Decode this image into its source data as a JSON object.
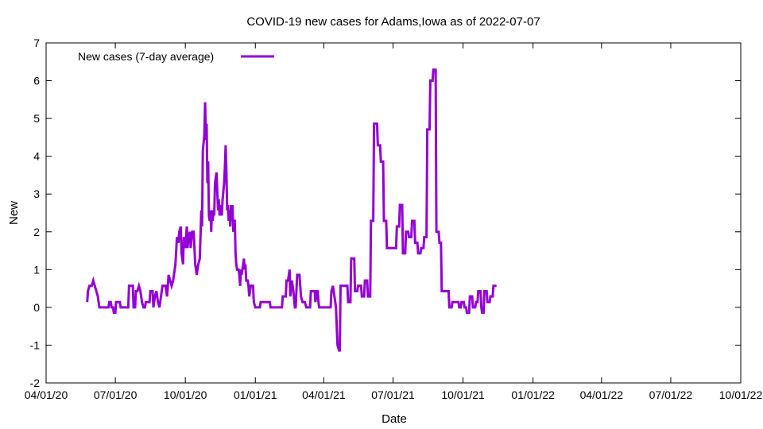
{
  "chart_data": {
    "type": "line",
    "title": "COVID-19 new cases for Adams,Iowa as of 2022-07-07",
    "xlabel": "Date",
    "ylabel": "New",
    "x_scale": "date",
    "xlim": [
      "2020-04-01",
      "2022-10-01"
    ],
    "ylim": [
      -2,
      7
    ],
    "x_ticks": [
      {
        "value": "2020-04-01",
        "label": "04/01/20"
      },
      {
        "value": "2020-07-01",
        "label": "07/01/20"
      },
      {
        "value": "2020-10-01",
        "label": "10/01/20"
      },
      {
        "value": "2021-01-01",
        "label": "01/01/21"
      },
      {
        "value": "2021-04-01",
        "label": "04/01/21"
      },
      {
        "value": "2021-07-01",
        "label": "07/01/21"
      },
      {
        "value": "2021-10-01",
        "label": "10/01/21"
      },
      {
        "value": "2022-01-01",
        "label": "01/01/22"
      },
      {
        "value": "2022-04-01",
        "label": "04/01/22"
      },
      {
        "value": "2022-07-01",
        "label": "07/01/22"
      },
      {
        "value": "2022-10-01",
        "label": "10/01/22"
      }
    ],
    "y_ticks": [
      {
        "value": -2,
        "label": "-2"
      },
      {
        "value": -1,
        "label": "-1"
      },
      {
        "value": 0,
        "label": "0"
      },
      {
        "value": 1,
        "label": "1"
      },
      {
        "value": 2,
        "label": "2"
      },
      {
        "value": 3,
        "label": "3"
      },
      {
        "value": 4,
        "label": "4"
      },
      {
        "value": 5,
        "label": "5"
      },
      {
        "value": 6,
        "label": "6"
      },
      {
        "value": 7,
        "label": "7"
      }
    ],
    "grid": false,
    "legend_position": "top-left",
    "series": [
      {
        "name": "New cases (7-day average)",
        "color": "#9400d3",
        "points": [
          [
            "2020-05-25",
            0.14
          ],
          [
            "2020-05-26",
            0.43
          ],
          [
            "2020-05-28",
            0.57
          ],
          [
            "2020-05-31",
            0.57
          ],
          [
            "2020-06-02",
            0.71
          ],
          [
            "2020-06-04",
            0.57
          ],
          [
            "2020-06-06",
            0.43
          ],
          [
            "2020-06-08",
            0.29
          ],
          [
            "2020-06-10",
            0.0
          ],
          [
            "2020-06-22",
            0.0
          ],
          [
            "2020-06-23",
            0.14
          ],
          [
            "2020-06-25",
            0.14
          ],
          [
            "2020-06-26",
            0.0
          ],
          [
            "2020-06-28",
            0.0
          ],
          [
            "2020-06-29",
            -0.14
          ],
          [
            "2020-07-01",
            -0.14
          ],
          [
            "2020-07-02",
            0.14
          ],
          [
            "2020-07-07",
            0.14
          ],
          [
            "2020-07-08",
            0.0
          ],
          [
            "2020-07-18",
            0.0
          ],
          [
            "2020-07-19",
            0.57
          ],
          [
            "2020-07-24",
            0.57
          ],
          [
            "2020-07-25",
            0.0
          ],
          [
            "2020-07-27",
            0.0
          ],
          [
            "2020-07-28",
            0.43
          ],
          [
            "2020-07-30",
            0.43
          ],
          [
            "2020-08-01",
            0.57
          ],
          [
            "2020-08-03",
            0.43
          ],
          [
            "2020-08-05",
            0.14
          ],
          [
            "2020-08-07",
            0.0
          ],
          [
            "2020-08-09",
            0.0
          ],
          [
            "2020-08-10",
            0.14
          ],
          [
            "2020-08-15",
            0.14
          ],
          [
            "2020-08-16",
            0.43
          ],
          [
            "2020-08-19",
            0.43
          ],
          [
            "2020-08-20",
            0.0
          ],
          [
            "2020-08-22",
            0.29
          ],
          [
            "2020-08-24",
            0.43
          ],
          [
            "2020-08-26",
            0.14
          ],
          [
            "2020-08-28",
            0.0
          ],
          [
            "2020-08-30",
            0.29
          ],
          [
            "2020-09-01",
            0.57
          ],
          [
            "2020-09-05",
            0.57
          ],
          [
            "2020-09-07",
            0.29
          ],
          [
            "2020-09-09",
            0.86
          ],
          [
            "2020-09-11",
            0.71
          ],
          [
            "2020-09-13",
            0.57
          ],
          [
            "2020-09-15",
            0.71
          ],
          [
            "2020-09-18",
            1.14
          ],
          [
            "2020-09-20",
            1.86
          ],
          [
            "2020-09-22",
            1.71
          ],
          [
            "2020-09-23",
            2.0
          ],
          [
            "2020-09-25",
            2.14
          ],
          [
            "2020-09-26",
            1.43
          ],
          [
            "2020-09-28",
            1.14
          ],
          [
            "2020-09-29",
            1.86
          ],
          [
            "2020-10-01",
            1.57
          ],
          [
            "2020-10-03",
            2.14
          ],
          [
            "2020-10-04",
            1.57
          ],
          [
            "2020-10-05",
            1.86
          ],
          [
            "2020-10-07",
            2.0
          ],
          [
            "2020-10-08",
            1.57
          ],
          [
            "2020-10-10",
            2.0
          ],
          [
            "2020-10-12",
            2.0
          ],
          [
            "2020-10-14",
            1.14
          ],
          [
            "2020-10-16",
            0.86
          ],
          [
            "2020-10-18",
            1.14
          ],
          [
            "2020-10-20",
            1.29
          ],
          [
            "2020-10-22",
            2.57
          ],
          [
            "2020-10-23",
            2.14
          ],
          [
            "2020-10-24",
            4.14
          ],
          [
            "2020-10-26",
            4.57
          ],
          [
            "2020-10-27",
            5.43
          ],
          [
            "2020-10-28",
            4.43
          ],
          [
            "2020-10-29",
            4.86
          ],
          [
            "2020-10-30",
            3.29
          ],
          [
            "2020-10-31",
            3.86
          ],
          [
            "2020-11-01",
            2.43
          ],
          [
            "2020-11-02",
            2.29
          ],
          [
            "2020-11-03",
            2.57
          ],
          [
            "2020-11-04",
            2.0
          ],
          [
            "2020-11-05",
            2.57
          ],
          [
            "2020-11-06",
            2.29
          ],
          [
            "2020-11-07",
            2.57
          ],
          [
            "2020-11-08",
            2.43
          ],
          [
            "2020-11-09",
            3.29
          ],
          [
            "2020-11-11",
            3.57
          ],
          [
            "2020-11-13",
            2.57
          ],
          [
            "2020-11-14",
            2.86
          ],
          [
            "2020-11-15",
            2.43
          ],
          [
            "2020-11-16",
            2.71
          ],
          [
            "2020-11-18",
            2.43
          ],
          [
            "2020-11-19",
            2.86
          ],
          [
            "2020-11-21",
            3.29
          ],
          [
            "2020-11-22",
            3.71
          ],
          [
            "2020-11-23",
            4.29
          ],
          [
            "2020-11-24",
            3.57
          ],
          [
            "2020-11-25",
            2.57
          ],
          [
            "2020-11-26",
            2.71
          ],
          [
            "2020-11-27",
            2.29
          ],
          [
            "2020-11-28",
            2.57
          ],
          [
            "2020-11-29",
            2.14
          ],
          [
            "2020-11-30",
            2.71
          ],
          [
            "2020-12-01",
            2.29
          ],
          [
            "2020-12-02",
            2.71
          ],
          [
            "2020-12-03",
            2.0
          ],
          [
            "2020-12-04",
            2.29
          ],
          [
            "2020-12-05",
            2.29
          ],
          [
            "2020-12-06",
            1.43
          ],
          [
            "2020-12-07",
            1.14
          ],
          [
            "2020-12-08",
            1.0
          ],
          [
            "2020-12-10",
            1.0
          ],
          [
            "2020-12-11",
            0.86
          ],
          [
            "2020-12-12",
            0.57
          ],
          [
            "2020-12-13",
            1.0
          ],
          [
            "2020-12-14",
            0.86
          ],
          [
            "2020-12-16",
            1.14
          ],
          [
            "2020-12-17",
            1.29
          ],
          [
            "2020-12-18",
            1.0
          ],
          [
            "2020-12-19",
            1.14
          ],
          [
            "2020-12-20",
            0.71
          ],
          [
            "2020-12-22",
            0.71
          ],
          [
            "2020-12-23",
            0.57
          ],
          [
            "2020-12-24",
            0.29
          ],
          [
            "2020-12-25",
            0.43
          ],
          [
            "2020-12-26",
            0.57
          ],
          [
            "2020-12-29",
            0.57
          ],
          [
            "2020-12-30",
            0.14
          ],
          [
            "2021-01-01",
            0.0
          ],
          [
            "2021-01-07",
            0.0
          ],
          [
            "2021-01-08",
            0.14
          ],
          [
            "2021-01-20",
            0.14
          ],
          [
            "2021-01-21",
            0.0
          ],
          [
            "2021-02-05",
            0.0
          ],
          [
            "2021-02-06",
            0.29
          ],
          [
            "2021-02-10",
            0.29
          ],
          [
            "2021-02-11",
            0.71
          ],
          [
            "2021-02-13",
            0.71
          ],
          [
            "2021-02-15",
            1.0
          ],
          [
            "2021-02-16",
            0.29
          ],
          [
            "2021-02-18",
            0.71
          ],
          [
            "2021-02-20",
            0.43
          ],
          [
            "2021-02-22",
            0.0
          ],
          [
            "2021-02-23",
            0.0
          ],
          [
            "2021-02-24",
            0.43
          ],
          [
            "2021-02-25",
            0.86
          ],
          [
            "2021-02-28",
            0.86
          ],
          [
            "2021-03-02",
            0.29
          ],
          [
            "2021-03-04",
            0.14
          ],
          [
            "2021-03-07",
            0.14
          ],
          [
            "2021-03-09",
            0.0
          ],
          [
            "2021-03-14",
            0.0
          ],
          [
            "2021-03-15",
            0.43
          ],
          [
            "2021-03-20",
            0.43
          ],
          [
            "2021-03-21",
            0.14
          ],
          [
            "2021-03-23",
            0.43
          ],
          [
            "2021-03-24",
            0.43
          ],
          [
            "2021-03-25",
            0.14
          ],
          [
            "2021-03-26",
            0.0
          ],
          [
            "2021-04-10",
            0.0
          ],
          [
            "2021-04-11",
            0.43
          ],
          [
            "2021-04-13",
            0.57
          ],
          [
            "2021-04-15",
            0.29
          ],
          [
            "2021-04-17",
            0.0
          ],
          [
            "2021-04-19",
            -1.0
          ],
          [
            "2021-04-21",
            -1.14
          ],
          [
            "2021-04-22",
            -1.14
          ],
          [
            "2021-04-23",
            0.57
          ],
          [
            "2021-05-02",
            0.57
          ],
          [
            "2021-05-03",
            0.14
          ],
          [
            "2021-05-06",
            0.14
          ],
          [
            "2021-05-07",
            1.29
          ],
          [
            "2021-05-11",
            1.29
          ],
          [
            "2021-05-12",
            0.43
          ],
          [
            "2021-05-15",
            0.43
          ],
          [
            "2021-05-16",
            0.57
          ],
          [
            "2021-05-20",
            0.57
          ],
          [
            "2021-05-21",
            0.29
          ],
          [
            "2021-05-24",
            0.29
          ],
          [
            "2021-05-25",
            0.71
          ],
          [
            "2021-05-28",
            0.71
          ],
          [
            "2021-05-29",
            0.29
          ],
          [
            "2021-06-01",
            0.29
          ],
          [
            "2021-06-02",
            2.29
          ],
          [
            "2021-06-05",
            2.29
          ],
          [
            "2021-06-06",
            4.86
          ],
          [
            "2021-06-10",
            4.86
          ],
          [
            "2021-06-11",
            4.29
          ],
          [
            "2021-06-14",
            4.29
          ],
          [
            "2021-06-15",
            3.86
          ],
          [
            "2021-06-18",
            3.86
          ],
          [
            "2021-06-19",
            2.29
          ],
          [
            "2021-06-22",
            2.29
          ],
          [
            "2021-06-23",
            1.57
          ],
          [
            "2021-07-05",
            1.57
          ],
          [
            "2021-07-06",
            2.14
          ],
          [
            "2021-07-09",
            2.14
          ],
          [
            "2021-07-10",
            2.71
          ],
          [
            "2021-07-13",
            2.71
          ],
          [
            "2021-07-14",
            1.43
          ],
          [
            "2021-07-17",
            1.43
          ],
          [
            "2021-07-18",
            2.0
          ],
          [
            "2021-07-21",
            2.0
          ],
          [
            "2021-07-22",
            1.86
          ],
          [
            "2021-07-25",
            1.86
          ],
          [
            "2021-07-26",
            2.29
          ],
          [
            "2021-07-29",
            2.29
          ],
          [
            "2021-07-30",
            1.71
          ],
          [
            "2021-08-02",
            1.71
          ],
          [
            "2021-08-03",
            1.43
          ],
          [
            "2021-08-06",
            1.43
          ],
          [
            "2021-08-07",
            1.57
          ],
          [
            "2021-08-10",
            1.57
          ],
          [
            "2021-08-11",
            1.86
          ],
          [
            "2021-08-14",
            1.86
          ],
          [
            "2021-08-15",
            4.71
          ],
          [
            "2021-08-18",
            4.71
          ],
          [
            "2021-08-19",
            6.0
          ],
          [
            "2021-08-22",
            6.0
          ],
          [
            "2021-08-23",
            6.29
          ],
          [
            "2021-08-26",
            6.29
          ],
          [
            "2021-08-27",
            2.0
          ],
          [
            "2021-08-30",
            2.0
          ],
          [
            "2021-08-31",
            1.71
          ],
          [
            "2021-09-02",
            1.71
          ],
          [
            "2021-09-03",
            0.43
          ],
          [
            "2021-09-12",
            0.43
          ],
          [
            "2021-09-13",
            0.0
          ],
          [
            "2021-09-16",
            0.0
          ],
          [
            "2021-09-17",
            0.14
          ],
          [
            "2021-09-25",
            0.14
          ],
          [
            "2021-09-26",
            0.0
          ],
          [
            "2021-09-28",
            0.0
          ],
          [
            "2021-09-29",
            0.14
          ],
          [
            "2021-10-02",
            0.14
          ],
          [
            "2021-10-03",
            0.0
          ],
          [
            "2021-10-05",
            0.0
          ],
          [
            "2021-10-06",
            -0.14
          ],
          [
            "2021-10-09",
            -0.14
          ],
          [
            "2021-10-10",
            0.29
          ],
          [
            "2021-10-13",
            0.29
          ],
          [
            "2021-10-14",
            0.0
          ],
          [
            "2021-10-17",
            0.0
          ],
          [
            "2021-10-18",
            0.14
          ],
          [
            "2021-10-20",
            0.14
          ],
          [
            "2021-10-21",
            0.43
          ],
          [
            "2021-10-24",
            0.43
          ],
          [
            "2021-10-25",
            0.0
          ],
          [
            "2021-10-26",
            -0.14
          ],
          [
            "2021-10-28",
            -0.14
          ],
          [
            "2021-10-29",
            0.43
          ],
          [
            "2021-11-01",
            0.43
          ],
          [
            "2021-11-02",
            0.14
          ],
          [
            "2021-11-05",
            0.14
          ],
          [
            "2021-11-06",
            0.29
          ],
          [
            "2021-11-09",
            0.29
          ],
          [
            "2021-11-10",
            0.57
          ],
          [
            "2021-11-14",
            0.57
          ]
        ]
      }
    ]
  }
}
